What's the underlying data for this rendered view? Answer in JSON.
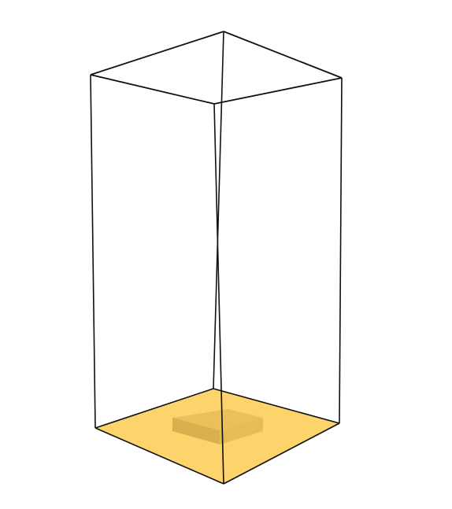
{
  "figure": {
    "subject": "wireframe-box-with-filled-base",
    "colors": {
      "edge": "#111111",
      "base_fill": "#fdd36b",
      "block_top": "#e8bf5a",
      "block_front": "#d8ae4e",
      "block_side": "#e5bb55",
      "background": "#ffffff"
    }
  }
}
